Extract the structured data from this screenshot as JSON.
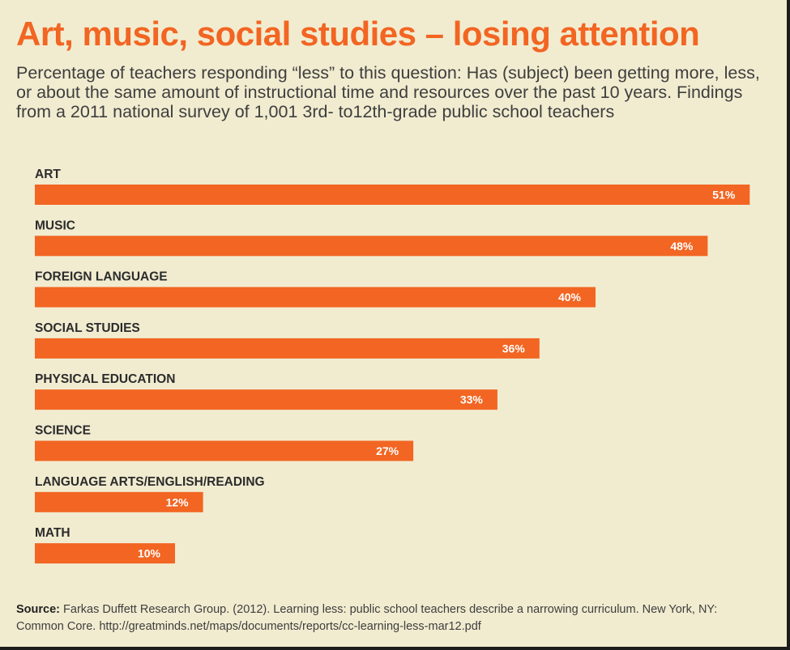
{
  "colors": {
    "background": "#f1ecd0",
    "accent": "#f26522",
    "text": "#3e3e3e"
  },
  "header": {
    "title": "Art, music, social studies – losing attention",
    "subtitle": "Percentage of teachers responding “less” to this question: Has (subject) been getting more, less, or about the same amount of instructional time and resources over the past 10 years. Findings from a 2011 national survey of 1,001 3rd- to12th-grade public school teachers"
  },
  "chart_data": {
    "type": "bar",
    "orientation": "horizontal",
    "categories": [
      "ART",
      "MUSIC",
      "FOREIGN LANGUAGE",
      "SOCIAL STUDIES",
      "PHYSICAL EDUCATION",
      "SCIENCE",
      "LANGUAGE ARTS/ENGLISH/READING",
      "MATH"
    ],
    "values": [
      51,
      48,
      40,
      36,
      33,
      27,
      12,
      10
    ],
    "value_labels": [
      "51%",
      "48%",
      "40%",
      "36%",
      "33%",
      "27%",
      "12%",
      "10%"
    ],
    "unit": "%",
    "title": "Art, music, social studies – losing attention",
    "xlabel": "",
    "ylabel": "",
    "grid": false
  },
  "footer": {
    "source_label": "Source:",
    "source_text": "Farkas Duffett Research Group. (2012). Learning less: public school teachers describe a narrowing curriculum. New York, NY: Common Core. http://greatminds.net/maps/documents/reports/cc-learning-less-mar12.pdf"
  }
}
